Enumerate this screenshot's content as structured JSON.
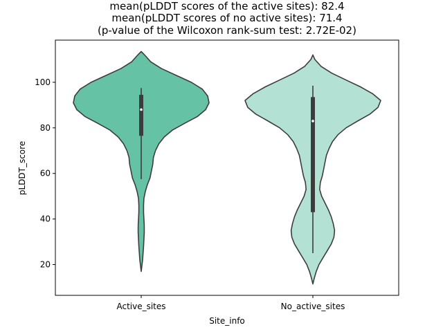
{
  "chart_data": {
    "type": "violin",
    "title": [
      "mean(pLDDT scores of the active sites): 82.4",
      "mean(pLDDT scores of no active sites): 71.4",
      "(p-value of the Wilcoxon rank-sum test: 2.72E-02)"
    ],
    "xlabel": "Site_info",
    "ylabel": "pLDDT_score",
    "categories": [
      "Active_sites",
      "No_active_sites"
    ],
    "yticks": [
      20,
      40,
      60,
      80,
      100
    ],
    "ylim": [
      6.5,
      118.5
    ],
    "grid": false,
    "colors": [
      "#66c2a5",
      "#b3e2d5"
    ],
    "edge_color": "#3c3c3c",
    "violins": [
      {
        "category": "Active_sites",
        "color": "#66c2a5",
        "median": 88,
        "q1": 76.5,
        "q3": 94.5,
        "whisker_low": 57.5,
        "whisker_high": 97.5,
        "density_profile": [
          [
            113.5,
            0.0
          ],
          [
            112,
            0.05
          ],
          [
            109,
            0.14
          ],
          [
            106,
            0.3
          ],
          [
            103,
            0.52
          ],
          [
            100,
            0.74
          ],
          [
            97,
            0.9
          ],
          [
            94,
            0.98
          ],
          [
            91,
            1.0
          ],
          [
            88,
            0.95
          ],
          [
            85,
            0.83
          ],
          [
            82,
            0.64
          ],
          [
            79,
            0.46
          ],
          [
            76,
            0.34
          ],
          [
            73,
            0.26
          ],
          [
            70,
            0.21
          ],
          [
            67,
            0.18
          ],
          [
            64,
            0.17
          ],
          [
            61,
            0.15
          ],
          [
            58,
            0.13
          ],
          [
            55,
            0.09
          ],
          [
            52,
            0.06
          ],
          [
            49,
            0.04
          ],
          [
            46,
            0.035
          ],
          [
            43,
            0.035
          ],
          [
            40,
            0.04
          ],
          [
            37,
            0.045
          ],
          [
            34,
            0.045
          ],
          [
            31,
            0.04
          ],
          [
            28,
            0.035
          ],
          [
            25,
            0.028
          ],
          [
            22,
            0.02
          ],
          [
            19.5,
            0.01
          ],
          [
            17,
            0.0
          ]
        ]
      },
      {
        "category": "No_active_sites",
        "color": "#b3e2d5",
        "median": 83,
        "q1": 43,
        "q3": 93.5,
        "whisker_low": 25,
        "whisker_high": 98.5,
        "density_profile": [
          [
            112,
            0.0
          ],
          [
            110,
            0.03
          ],
          [
            107,
            0.12
          ],
          [
            104,
            0.28
          ],
          [
            101,
            0.49
          ],
          [
            98,
            0.7
          ],
          [
            95,
            0.88
          ],
          [
            92,
            1.0
          ],
          [
            89,
            0.96
          ],
          [
            86,
            0.84
          ],
          [
            83,
            0.66
          ],
          [
            80,
            0.49
          ],
          [
            77,
            0.37
          ],
          [
            74,
            0.29
          ],
          [
            71,
            0.24
          ],
          [
            68,
            0.2
          ],
          [
            65,
            0.18
          ],
          [
            62,
            0.16
          ],
          [
            59,
            0.14
          ],
          [
            56,
            0.11
          ],
          [
            53,
            0.1
          ],
          [
            50,
            0.13
          ],
          [
            47,
            0.18
          ],
          [
            44,
            0.23
          ],
          [
            41,
            0.27
          ],
          [
            38,
            0.3
          ],
          [
            35,
            0.32
          ],
          [
            32,
            0.31
          ],
          [
            29,
            0.27
          ],
          [
            26,
            0.21
          ],
          [
            23,
            0.15
          ],
          [
            20,
            0.09
          ],
          [
            17,
            0.05
          ],
          [
            14,
            0.02
          ],
          [
            11.5,
            0.0
          ]
        ]
      }
    ]
  }
}
